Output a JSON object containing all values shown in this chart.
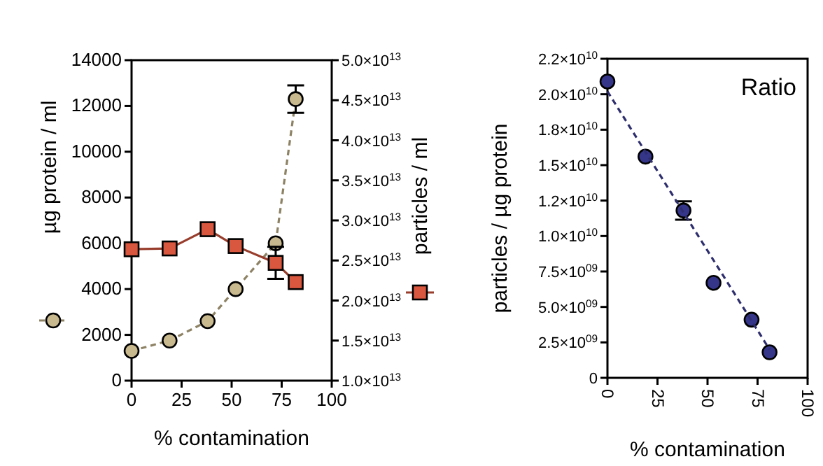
{
  "chart_data": [
    {
      "type": "line",
      "xlabel": "% contamination",
      "ylabel": "µg protein / ml",
      "y2label": "particles / ml",
      "grid": false,
      "xlim": [
        0,
        100
      ],
      "xticks": [
        0,
        25,
        50,
        75,
        100
      ],
      "ylim": [
        0,
        14000
      ],
      "yticks": [
        0,
        2000,
        4000,
        6000,
        8000,
        10000,
        12000,
        14000
      ],
      "y2lim": [
        10000000000000.0,
        50000000000000.0
      ],
      "y2ticks": [
        {
          "value": 10000000000000.0,
          "label": "1.0×10$^{13}$"
        },
        {
          "value": 15000000000000.0,
          "label": "1.5×10$^{13}$"
        },
        {
          "value": 20000000000000.0,
          "label": "2.0×10$^{13}$"
        },
        {
          "value": 25000000000000.0,
          "label": "2.5×10$^{13}$"
        },
        {
          "value": 30000000000000.0,
          "label": "3.0×10$^{13}$"
        },
        {
          "value": 35000000000000.0,
          "label": "3.5×10$^{13}$"
        },
        {
          "value": 40000000000000.0,
          "label": "4.0×10$^{13}$"
        },
        {
          "value": 45000000000000.0,
          "label": "4.5×10$^{13}$"
        },
        {
          "value": 50000000000000.0,
          "label": "5.0×10$^{13}$"
        }
      ],
      "series": [
        {
          "color": "#c9b98f",
          "marker": "circle",
          "line_style": "dashed",
          "x": [
            0,
            19,
            38,
            52,
            72,
            82
          ],
          "values": [
            1300,
            1750,
            2600,
            4000,
            6000,
            12300
          ],
          "errors": [
            null,
            null,
            null,
            null,
            null,
            600
          ]
        },
        {
          "color": "#d9573f",
          "marker": "square",
          "line_style": "solid",
          "axis": "y2",
          "x": [
            0,
            19,
            38,
            52,
            72,
            82
          ],
          "values": [
            26400000000000.0,
            26500000000000.0,
            28900000000000.0,
            26800000000000.0,
            24700000000000.0,
            22300000000000.0
          ],
          "errors": [
            null,
            null,
            null,
            null,
            2000000000000.0,
            null
          ]
        }
      ]
    },
    {
      "type": "scatter",
      "title": "Ratio",
      "xlabel": "% contamination",
      "ylabel": "particles / µg protein",
      "grid": false,
      "xlim": [
        0,
        100
      ],
      "xticks": [
        0,
        25,
        50,
        75,
        100
      ],
      "ylim": [
        0,
        22500000000.0
      ],
      "yticks": [
        0,
        {
          "value": 2500000000.0,
          "label": "2.5×10$^{09}$"
        },
        {
          "value": 5000000000.0,
          "label": "5.0×10$^{09}$"
        },
        {
          "value": 7500000000.0,
          "label": "7.5×10$^{09}$"
        },
        {
          "value": 10000000000.0,
          "label": "1.0×10$^{10}$"
        },
        {
          "value": 12500000000.0,
          "label": "1.2×10$^{10}$"
        },
        {
          "value": 15000000000.0,
          "label": "1.5×10$^{10}$"
        },
        {
          "value": 17500000000.0,
          "label": "1.8×10$^{10}$"
        },
        {
          "value": 20000000000.0,
          "label": "2.0×10$^{10}$"
        },
        {
          "value": 22500000000.0,
          "label": "2.2×10$^{10}$"
        }
      ],
      "series": [
        {
          "color": "#35358a",
          "marker": "circle",
          "x": [
            0,
            19,
            38,
            53,
            72,
            81
          ],
          "values": [
            20900000000.0,
            15600000000.0,
            11800000000.0,
            6700000000.0,
            4100000000.0,
            1800000000.0
          ],
          "errors": [
            null,
            null,
            650000000.0,
            null,
            null,
            null
          ]
        },
        {
          "type": "line",
          "color": "#2e2e6e",
          "marker": "none",
          "line_style": "dashed",
          "x": [
            0,
            81
          ],
          "values": [
            20200000000.0,
            2000000000.0
          ]
        }
      ]
    }
  ]
}
